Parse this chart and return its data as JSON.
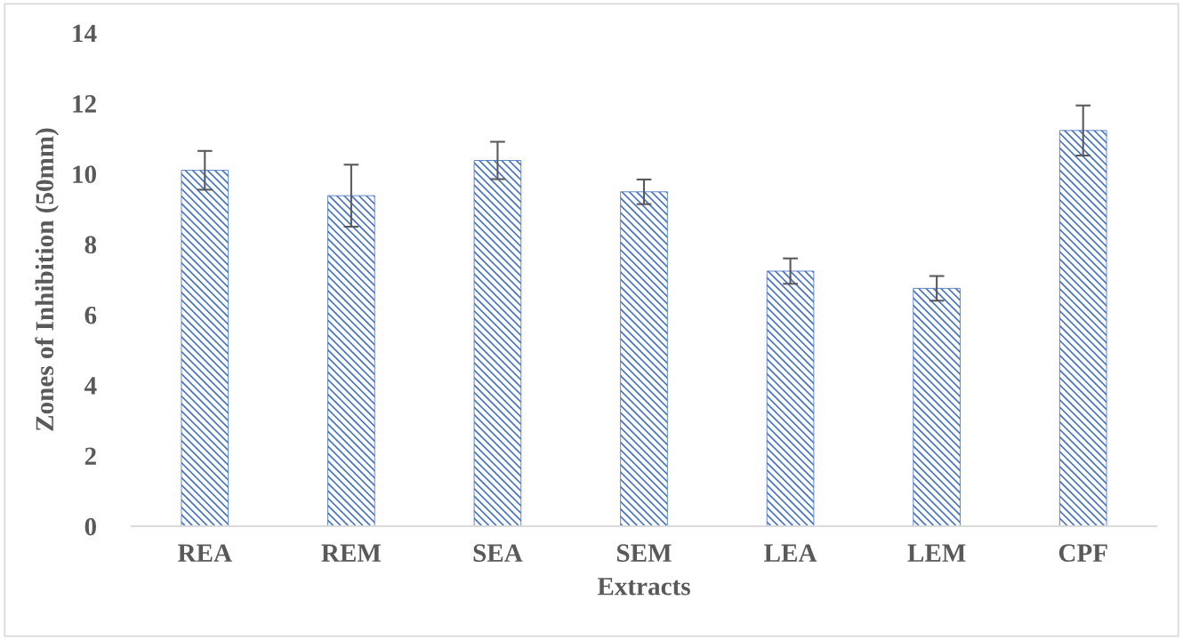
{
  "chart_data": {
    "type": "bar",
    "xlabel": "Extracts",
    "ylabel": "Zones of Inhibition (50mm)",
    "categories": [
      "REA",
      "REM",
      "SEA",
      "SEM",
      "LEA",
      "LEM",
      "CPF"
    ],
    "values": [
      10.1,
      9.38,
      10.38,
      9.49,
      7.24,
      6.75,
      11.23
    ],
    "errors": [
      0.55,
      0.88,
      0.53,
      0.35,
      0.36,
      0.35,
      0.71
    ],
    "color": "#4472c4",
    "ylim": [
      0,
      14
    ],
    "yticks": [
      0,
      2,
      4,
      6,
      8,
      10,
      12,
      14
    ],
    "grid": false,
    "legend": false
  }
}
